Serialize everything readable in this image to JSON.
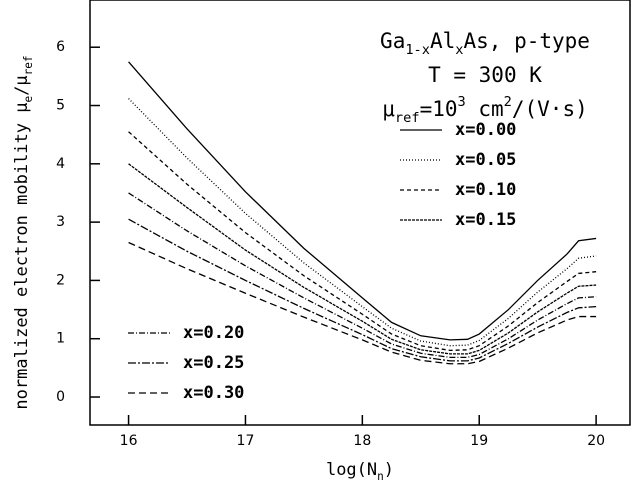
{
  "chart_data": {
    "type": "line",
    "title_parts": [
      {
        "parts": [
          "Ga",
          "1-x",
          "Al",
          "x",
          "As, p-type"
        ],
        "styles": [
          "normal",
          "sub",
          "normal",
          "sub",
          "normal"
        ]
      },
      {
        "parts": [
          "T = 300 K"
        ],
        "styles": [
          "normal"
        ]
      },
      {
        "parts": [
          "μ",
          "ref",
          "=10",
          "3",
          " cm",
          "2",
          "/(V·s)"
        ],
        "styles": [
          "normal",
          "sub",
          "normal",
          "sup",
          "normal",
          "sup",
          "normal"
        ]
      }
    ],
    "x_label": {
      "parts": [
        "log(N",
        "n",
        ")"
      ],
      "styles": [
        "normal",
        "sub",
        "normal"
      ]
    },
    "y_label": {
      "parts": [
        "normalized electron mobility μ",
        "e",
        "/μ",
        "ref"
      ],
      "styles": [
        "normal",
        "sub",
        "normal",
        "sub"
      ]
    },
    "x": [
      16,
      16.5,
      17,
      17.5,
      18,
      18.25,
      18.5,
      18.75,
      18.9,
      19,
      19.25,
      19.5,
      19.75,
      19.85,
      20
    ],
    "series": [
      {
        "name": "x=0.00",
        "color": "#000",
        "dash": "none",
        "values": [
          5.75,
          4.6,
          3.52,
          2.55,
          1.7,
          1.28,
          1.05,
          0.98,
          0.99,
          1.08,
          1.5,
          2.0,
          2.45,
          2.68,
          2.72
        ]
      },
      {
        "name": "x=0.05",
        "color": "#000",
        "dash": "1 2",
        "values": [
          5.12,
          4.1,
          3.15,
          2.3,
          1.55,
          1.18,
          0.96,
          0.88,
          0.89,
          0.97,
          1.35,
          1.8,
          2.2,
          2.38,
          2.42
        ]
      },
      {
        "name": "x=0.10",
        "color": "#000",
        "dash": "4 3",
        "values": [
          4.55,
          3.65,
          2.82,
          2.08,
          1.42,
          1.08,
          0.88,
          0.8,
          0.81,
          0.88,
          1.22,
          1.62,
          1.98,
          2.12,
          2.15
        ]
      },
      {
        "name": "x=0.15",
        "color": "#000",
        "dash": "3 1",
        "values": [
          4.0,
          3.25,
          2.52,
          1.88,
          1.3,
          0.99,
          0.81,
          0.74,
          0.74,
          0.8,
          1.1,
          1.46,
          1.78,
          1.9,
          1.92
        ]
      },
      {
        "name": "x=0.20",
        "color": "#000",
        "dash": "6 2 1 2",
        "values": [
          3.5,
          2.85,
          2.25,
          1.7,
          1.18,
          0.91,
          0.75,
          0.68,
          0.68,
          0.73,
          1.0,
          1.32,
          1.6,
          1.7,
          1.72
        ]
      },
      {
        "name": "x=0.25",
        "color": "#000",
        "dash": "8 2 2 2",
        "values": [
          3.05,
          2.5,
          2.0,
          1.52,
          1.07,
          0.83,
          0.69,
          0.62,
          0.62,
          0.67,
          0.92,
          1.2,
          1.45,
          1.53,
          1.55
        ]
      },
      {
        "name": "x=0.30",
        "color": "#000",
        "dash": "7 4",
        "values": [
          2.65,
          2.2,
          1.78,
          1.37,
          0.98,
          0.77,
          0.63,
          0.57,
          0.57,
          0.61,
          0.84,
          1.1,
          1.32,
          1.38,
          1.38
        ]
      }
    ],
    "xlim": [
      15.67,
      20.29
    ],
    "ylim": [
      -0.48,
      6.81
    ],
    "xticks": [
      16,
      17,
      18,
      19,
      20
    ],
    "yticks": [
      0,
      1,
      2,
      3,
      4,
      5,
      6
    ]
  }
}
